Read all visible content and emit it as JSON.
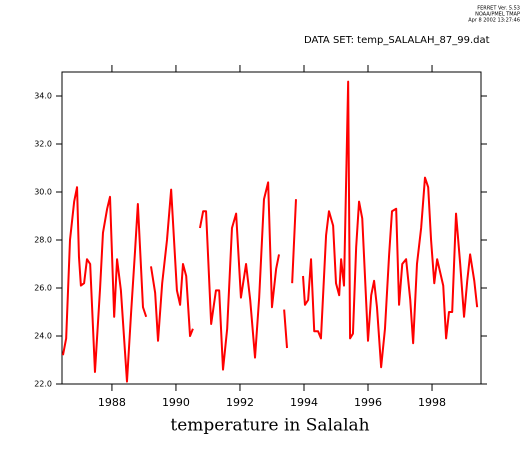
{
  "chart_data": {
    "type": "line",
    "header_lines": [
      "FERRET Ver. 5.53",
      "NOAA/PMEL TMAP",
      "Apr  8 2002 13:27:46"
    ],
    "dataset": "DATA SET: temp_SALALAH_87_99.dat",
    "x_label": "temperature in Salalah",
    "xlim": [
      1986.44,
      1999.53
    ],
    "xticks": [
      1988,
      1990,
      1992,
      1994,
      1996,
      1998
    ],
    "ylim": [
      22,
      35
    ],
    "yticks": [
      {
        "value": 22,
        "label": "22.0"
      },
      {
        "value": 24,
        "label": "24.0"
      },
      {
        "value": 26,
        "label": "26.0"
      },
      {
        "value": 28,
        "label": "28.0"
      },
      {
        "value": 30,
        "label": "30.0"
      },
      {
        "value": 32,
        "label": "32.0"
      },
      {
        "value": 34,
        "label": "34.0"
      }
    ],
    "color": "#ff0000",
    "x": [
      1986.47,
      1986.57,
      1986.69,
      1986.82,
      1986.91,
      1986.97,
      1987.03,
      1987.13,
      1987.22,
      1987.32,
      1987.47,
      1987.63,
      1987.72,
      1987.85,
      1987.94,
      1988.07,
      1988.16,
      1988.28,
      1988.47,
      1988.6,
      1988.72,
      1988.81,
      1988.97,
      1989.07,
      null,
      1989.22,
      1989.35,
      1989.44,
      1989.57,
      1989.72,
      1989.85,
      1990.03,
      1990.13,
      1990.22,
      1990.32,
      1990.44,
      1990.53,
      null,
      1990.75,
      1990.85,
      1990.94,
      1991.1,
      1991.25,
      1991.35,
      1991.47,
      1991.6,
      1991.75,
      1991.88,
      1992.03,
      1992.19,
      1992.32,
      1992.47,
      1992.6,
      1992.75,
      1992.88,
      1993.0,
      1993.13,
      1993.22,
      null,
      1993.38,
      1993.47,
      null,
      1993.63,
      1993.75,
      null,
      1993.97,
      1994.03,
      1994.13,
      1994.22,
      1994.32,
      1994.44,
      1994.53,
      1994.69,
      1994.78,
      1994.91,
      1995.0,
      1995.1,
      1995.16,
      1995.25,
      1995.38,
      1995.44,
      1995.53,
      1995.63,
      1995.72,
      1995.82,
      1996.0,
      1996.1,
      1996.19,
      1996.28,
      1996.41,
      1996.53,
      1996.66,
      1996.75,
      1996.88,
      1996.97,
      1997.07,
      1997.19,
      1997.32,
      1997.41,
      1997.53,
      1997.66,
      1997.78,
      1997.88,
      1997.97,
      1998.07,
      1998.16,
      1998.35,
      1998.44,
      1998.53,
      1998.63,
      1998.75,
      1998.88,
      1999.0,
      1999.1,
      1999.19,
      1999.32,
      1999.41
    ],
    "values": [
      23.2,
      23.9,
      28.0,
      29.6,
      30.2,
      27.3,
      26.1,
      26.2,
      27.2,
      27.0,
      22.5,
      26.0,
      28.3,
      29.3,
      29.8,
      24.8,
      27.2,
      25.9,
      22.1,
      25.0,
      27.5,
      29.5,
      25.2,
      24.8,
      null,
      26.9,
      25.8,
      23.8,
      26.2,
      28.0,
      30.1,
      25.9,
      25.3,
      27.0,
      26.5,
      24.0,
      24.3,
      null,
      28.5,
      29.2,
      29.2,
      24.5,
      25.9,
      25.9,
      22.6,
      24.3,
      28.5,
      29.1,
      25.6,
      27.0,
      25.5,
      23.1,
      25.6,
      29.7,
      30.4,
      25.2,
      26.8,
      27.4,
      null,
      25.1,
      23.5,
      null,
      26.2,
      29.7,
      null,
      26.5,
      25.3,
      25.5,
      27.2,
      24.2,
      24.2,
      23.9,
      28.2,
      29.2,
      28.6,
      26.2,
      25.7,
      27.2,
      26.1,
      34.6,
      23.9,
      24.1,
      27.7,
      29.6,
      28.9,
      23.8,
      25.7,
      26.3,
      25.2,
      22.7,
      24.3,
      27.4,
      29.2,
      29.3,
      25.3,
      27.0,
      27.2,
      25.5,
      23.7,
      27.0,
      28.5,
      30.6,
      30.2,
      28.0,
      26.2,
      27.2,
      26.1,
      23.9,
      25.0,
      25.0,
      29.1,
      27.0,
      24.8,
      26.3,
      27.4,
      26.3,
      25.2
    ]
  }
}
